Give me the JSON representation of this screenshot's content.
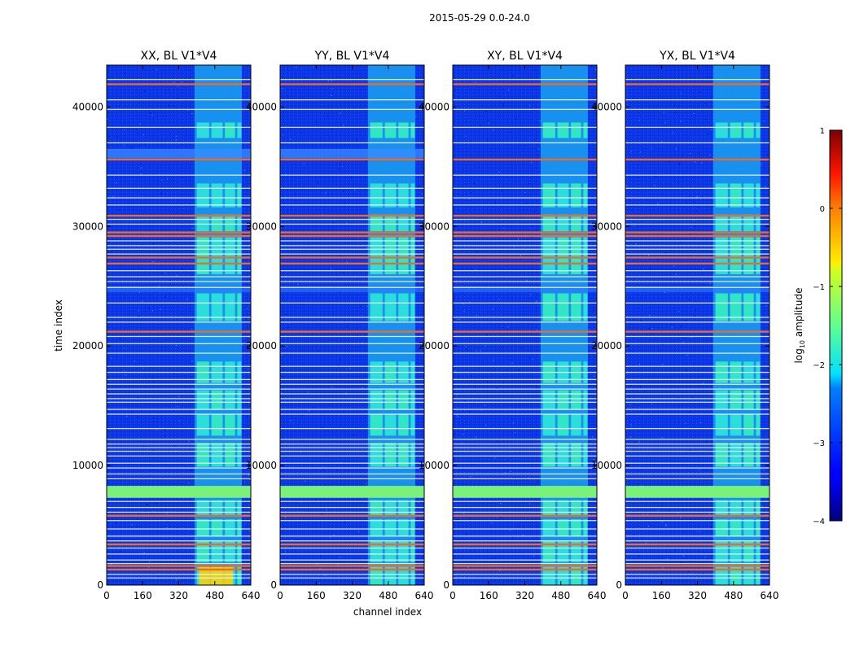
{
  "suptitle": "2015-05-29 0.0-24.0",
  "colors": {
    "background": "#0a36e8",
    "flag_red": "#f06a2a",
    "flag_white": "#f4f4f0"
  },
  "chart_data": [
    {
      "type": "heatmap",
      "title": "XX, BL V1*V4",
      "xlabel": "channel index",
      "ylabel": "time index",
      "xlim": [
        0,
        640
      ],
      "ylim": [
        0,
        43500
      ],
      "xticks": [
        "0",
        "160",
        "320",
        "480",
        "640"
      ],
      "yticks": [
        "0",
        "10000",
        "20000",
        "30000",
        "40000"
      ],
      "colormap": "jet",
      "color_scale": "log10",
      "colorbar": {
        "label": "log10 amplitude",
        "range": [
          -4,
          1
        ],
        "ticks": [
          "1",
          "0",
          "−1",
          "−2",
          "−3",
          "−4"
        ]
      },
      "rfi_channel_band": [
        390,
        600
      ],
      "red_flag_rows": [
        41900,
        35600,
        30900,
        29500,
        29200,
        27400,
        26900,
        21200,
        5800,
        3400,
        1600,
        1300
      ],
      "saturated_row_band": [
        7400,
        8200
      ],
      "grid": false
    },
    {
      "type": "heatmap",
      "title": "YY, BL V1*V4",
      "xlim": [
        0,
        640
      ],
      "ylim": [
        0,
        43500
      ],
      "xticks": [
        "0",
        "160",
        "320",
        "480",
        "640"
      ],
      "yticks": [
        "0",
        "10000",
        "20000",
        "30000",
        "40000"
      ],
      "colormap": "jet",
      "color_scale": "log10",
      "rfi_channel_band": [
        390,
        600
      ],
      "grid": false
    },
    {
      "type": "heatmap",
      "title": "XY, BL V1*V4",
      "xlim": [
        0,
        640
      ],
      "ylim": [
        0,
        43500
      ],
      "xticks": [
        "0",
        "160",
        "320",
        "480",
        "640"
      ],
      "yticks": [
        "0",
        "10000",
        "20000",
        "30000",
        "40000"
      ],
      "colormap": "jet",
      "color_scale": "log10",
      "rfi_channel_band": [
        390,
        600
      ],
      "grid": false
    },
    {
      "type": "heatmap",
      "title": "YX, BL V1*V4",
      "xlim": [
        0,
        640
      ],
      "ylim": [
        0,
        43500
      ],
      "xticks": [
        "0",
        "160",
        "320",
        "480",
        "640"
      ],
      "yticks": [
        "0",
        "10000",
        "20000",
        "30000",
        "40000"
      ],
      "colormap": "jet",
      "color_scale": "log10",
      "rfi_channel_band": [
        390,
        600
      ],
      "grid": false
    }
  ]
}
